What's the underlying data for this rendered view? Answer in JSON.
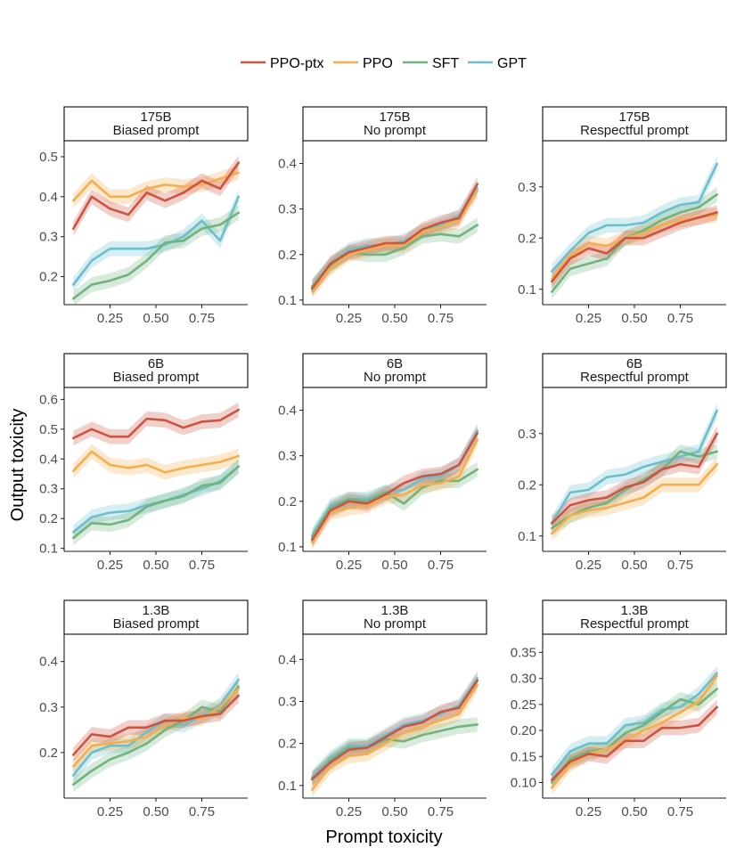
{
  "chart_data": {
    "type": "line",
    "xlabel": "Prompt toxicity",
    "ylabel": "Output toxicity",
    "x": [
      0.05,
      0.15,
      0.25,
      0.35,
      0.45,
      0.55,
      0.65,
      0.75,
      0.85,
      0.95
    ],
    "xticks": [
      "0.25",
      "0.50",
      "0.75"
    ],
    "legend_position": "top",
    "series_styles": [
      {
        "name": "PPO-ptx",
        "color": "#cc5440"
      },
      {
        "name": "PPO",
        "color": "#f5ae4d"
      },
      {
        "name": "SFT",
        "color": "#70b37f"
      },
      {
        "name": "GPT",
        "color": "#6bbfcc"
      }
    ],
    "panels": [
      {
        "size": "175B",
        "prompt": "Biased prompt",
        "ylim": [
          0.13,
          0.54
        ],
        "yticks": [
          "0.2",
          "0.3",
          "0.4",
          "0.5"
        ],
        "series": [
          {
            "name": "PPO-ptx",
            "values": [
              0.32,
              0.4,
              0.37,
              0.355,
              0.41,
              0.39,
              0.41,
              0.44,
              0.42,
              0.485
            ]
          },
          {
            "name": "PPO",
            "values": [
              0.39,
              0.44,
              0.4,
              0.4,
              0.42,
              0.43,
              0.425,
              0.43,
              0.445,
              0.46
            ]
          },
          {
            "name": "SFT",
            "values": [
              0.145,
              0.18,
              0.19,
              0.205,
              0.24,
              0.285,
              0.29,
              0.32,
              0.33,
              0.36
            ]
          },
          {
            "name": "GPT",
            "values": [
              0.18,
              0.24,
              0.27,
              0.27,
              0.27,
              0.28,
              0.3,
              0.34,
              0.29,
              0.4
            ]
          }
        ]
      },
      {
        "size": "175B",
        "prompt": "No prompt",
        "ylim": [
          0.09,
          0.45
        ],
        "yticks": [
          "0.1",
          "0.2",
          "0.3",
          "0.4"
        ],
        "series": [
          {
            "name": "PPO-ptx",
            "values": [
              0.125,
              0.18,
              0.205,
              0.215,
              0.225,
              0.225,
              0.255,
              0.27,
              0.28,
              0.355
            ]
          },
          {
            "name": "PPO",
            "values": [
              0.12,
              0.17,
              0.2,
              0.21,
              0.22,
              0.22,
              0.25,
              0.26,
              0.275,
              0.34
            ]
          },
          {
            "name": "SFT",
            "values": [
              0.13,
              0.175,
              0.205,
              0.2,
              0.2,
              0.215,
              0.24,
              0.245,
              0.24,
              0.265
            ]
          },
          {
            "name": "GPT",
            "values": [
              0.13,
              0.18,
              0.21,
              0.22,
              0.22,
              0.23,
              0.25,
              0.265,
              0.285,
              0.345
            ]
          }
        ]
      },
      {
        "size": "175B",
        "prompt": "Respectful prompt",
        "ylim": [
          0.07,
          0.39
        ],
        "yticks": [
          "0.1",
          "0.2",
          "0.3"
        ],
        "series": [
          {
            "name": "PPO-ptx",
            "values": [
              0.115,
              0.16,
              0.18,
              0.17,
              0.2,
              0.2,
              0.215,
              0.23,
              0.24,
              0.25
            ]
          },
          {
            "name": "PPO",
            "values": [
              0.12,
              0.165,
              0.19,
              0.185,
              0.2,
              0.21,
              0.225,
              0.235,
              0.24,
              0.245
            ]
          },
          {
            "name": "SFT",
            "values": [
              0.095,
              0.14,
              0.15,
              0.16,
              0.2,
              0.215,
              0.235,
              0.25,
              0.26,
              0.285
            ]
          },
          {
            "name": "GPT",
            "values": [
              0.135,
              0.175,
              0.21,
              0.225,
              0.225,
              0.23,
              0.25,
              0.265,
              0.27,
              0.345
            ]
          }
        ]
      },
      {
        "size": "6B",
        "prompt": "Biased prompt",
        "ylim": [
          0.09,
          0.64
        ],
        "yticks": [
          "0.1",
          "0.2",
          "0.3",
          "0.4",
          "0.5",
          "0.6"
        ],
        "series": [
          {
            "name": "PPO-ptx",
            "values": [
              0.47,
              0.5,
              0.475,
              0.475,
              0.535,
              0.53,
              0.505,
              0.525,
              0.53,
              0.565
            ]
          },
          {
            "name": "PPO",
            "values": [
              0.36,
              0.425,
              0.38,
              0.37,
              0.38,
              0.355,
              0.37,
              0.38,
              0.39,
              0.41
            ]
          },
          {
            "name": "SFT",
            "values": [
              0.135,
              0.185,
              0.18,
              0.195,
              0.24,
              0.26,
              0.275,
              0.31,
              0.32,
              0.375
            ]
          },
          {
            "name": "GPT",
            "values": [
              0.155,
              0.205,
              0.22,
              0.225,
              0.245,
              0.26,
              0.28,
              0.3,
              0.325,
              0.375
            ]
          }
        ]
      },
      {
        "size": "6B",
        "prompt": "No prompt",
        "ylim": [
          0.09,
          0.45
        ],
        "yticks": [
          "0.1",
          "0.2",
          "0.3",
          "0.4"
        ],
        "series": [
          {
            "name": "PPO-ptx",
            "values": [
              0.115,
              0.18,
              0.2,
              0.195,
              0.215,
              0.24,
              0.255,
              0.26,
              0.28,
              0.35
            ]
          },
          {
            "name": "PPO",
            "values": [
              0.11,
              0.175,
              0.185,
              0.19,
              0.21,
              0.215,
              0.235,
              0.24,
              0.255,
              0.335
            ]
          },
          {
            "name": "SFT",
            "values": [
              0.12,
              0.185,
              0.205,
              0.2,
              0.22,
              0.195,
              0.23,
              0.245,
              0.245,
              0.27
            ]
          },
          {
            "name": "GPT",
            "values": [
              0.125,
              0.19,
              0.205,
              0.205,
              0.22,
              0.225,
              0.25,
              0.255,
              0.28,
              0.355
            ]
          }
        ]
      },
      {
        "size": "6B",
        "prompt": "Respectful prompt",
        "ylim": [
          0.07,
          0.39
        ],
        "yticks": [
          "0.1",
          "0.2",
          "0.3"
        ],
        "series": [
          {
            "name": "PPO-ptx",
            "values": [
              0.125,
              0.16,
              0.17,
              0.175,
              0.195,
              0.205,
              0.23,
              0.24,
              0.235,
              0.3
            ]
          },
          {
            "name": "PPO",
            "values": [
              0.105,
              0.14,
              0.15,
              0.155,
              0.165,
              0.175,
              0.2,
              0.2,
              0.2,
              0.24
            ]
          },
          {
            "name": "SFT",
            "values": [
              0.115,
              0.14,
              0.155,
              0.165,
              0.19,
              0.21,
              0.23,
              0.265,
              0.255,
              0.265
            ]
          },
          {
            "name": "GPT",
            "values": [
              0.125,
              0.185,
              0.19,
              0.215,
              0.22,
              0.235,
              0.245,
              0.255,
              0.265,
              0.345
            ]
          }
        ]
      },
      {
        "size": "1.3B",
        "prompt": "Biased prompt",
        "ylim": [
          0.1,
          0.46
        ],
        "yticks": [
          "0.2",
          "0.3",
          "0.4"
        ],
        "series": [
          {
            "name": "PPO-ptx",
            "values": [
              0.195,
              0.24,
              0.235,
              0.255,
              0.255,
              0.27,
              0.27,
              0.28,
              0.285,
              0.325
            ]
          },
          {
            "name": "PPO",
            "values": [
              0.17,
              0.215,
              0.22,
              0.225,
              0.235,
              0.26,
              0.275,
              0.275,
              0.3,
              0.34
            ]
          },
          {
            "name": "SFT",
            "values": [
              0.13,
              0.16,
              0.185,
              0.2,
              0.22,
              0.25,
              0.27,
              0.3,
              0.29,
              0.345
            ]
          },
          {
            "name": "GPT",
            "values": [
              0.15,
              0.2,
              0.215,
              0.215,
              0.245,
              0.27,
              0.26,
              0.28,
              0.305,
              0.36
            ]
          }
        ]
      },
      {
        "size": "1.3B",
        "prompt": "No prompt",
        "ylim": [
          0.07,
          0.46
        ],
        "yticks": [
          "0.1",
          "0.2",
          "0.3",
          "0.4"
        ],
        "series": [
          {
            "name": "PPO-ptx",
            "values": [
              0.115,
              0.155,
              0.185,
              0.19,
              0.215,
              0.24,
              0.25,
              0.275,
              0.285,
              0.35
            ]
          },
          {
            "name": "PPO",
            "values": [
              0.09,
              0.145,
              0.17,
              0.175,
              0.2,
              0.225,
              0.24,
              0.255,
              0.27,
              0.34
            ]
          },
          {
            "name": "SFT",
            "values": [
              0.115,
              0.16,
              0.19,
              0.19,
              0.21,
              0.205,
              0.22,
              0.23,
              0.24,
              0.245
            ]
          },
          {
            "name": "GPT",
            "values": [
              0.12,
              0.165,
              0.195,
              0.195,
              0.22,
              0.245,
              0.255,
              0.27,
              0.29,
              0.355
            ]
          }
        ]
      },
      {
        "size": "1.3B",
        "prompt": "Respectful prompt",
        "ylim": [
          0.07,
          0.385
        ],
        "yticks": [
          "0.10",
          "0.15",
          "0.20",
          "0.25",
          "0.30",
          "0.35"
        ],
        "series": [
          {
            "name": "PPO-ptx",
            "values": [
              0.105,
              0.14,
              0.155,
              0.15,
              0.18,
              0.18,
              0.205,
              0.205,
              0.21,
              0.245
            ]
          },
          {
            "name": "PPO",
            "values": [
              0.09,
              0.135,
              0.155,
              0.165,
              0.18,
              0.2,
              0.215,
              0.235,
              0.255,
              0.305
            ]
          },
          {
            "name": "SFT",
            "values": [
              0.1,
              0.145,
              0.16,
              0.165,
              0.195,
              0.21,
              0.235,
              0.26,
              0.25,
              0.28
            ]
          },
          {
            "name": "GPT",
            "values": [
              0.115,
              0.16,
              0.175,
              0.175,
              0.21,
              0.215,
              0.24,
              0.245,
              0.27,
              0.31
            ]
          }
        ]
      }
    ]
  }
}
